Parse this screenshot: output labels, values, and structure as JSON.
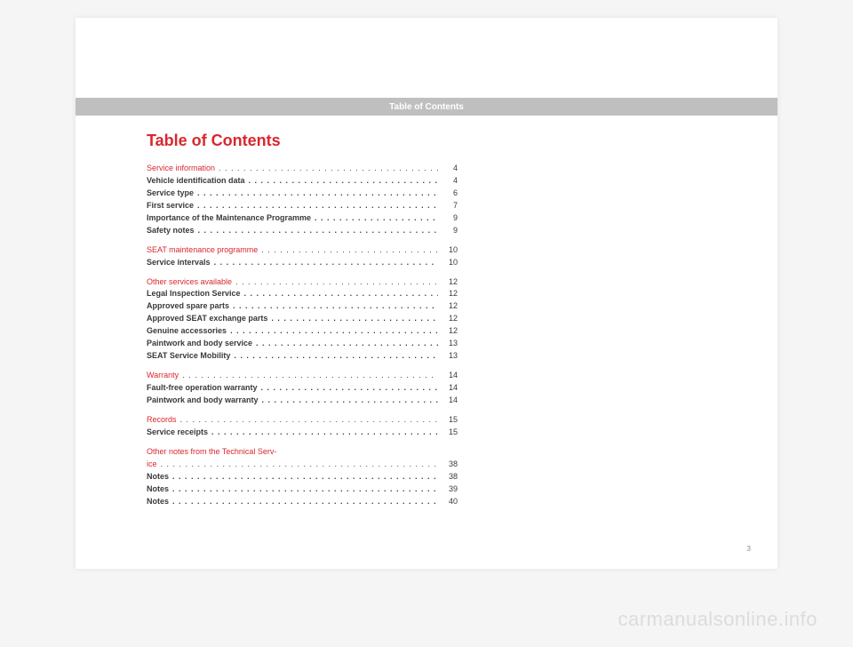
{
  "header": "Table of Contents",
  "title": "Table of Contents",
  "page_number": "3",
  "watermark": "carmanualsonline.info",
  "dots": ". . . . . . . . . . . . . . . . . . . . . . . . . . . . . . . . . . . . . . . . . . . . . . . . . . . . . . . . . . . .",
  "sections": [
    {
      "items": [
        {
          "label": "Service information",
          "page": "4",
          "style": "section"
        },
        {
          "label": "Vehicle identification data",
          "page": "4",
          "style": "bold"
        },
        {
          "label": "Service type",
          "page": "6",
          "style": "bold"
        },
        {
          "label": "First service",
          "page": "7",
          "style": "bold"
        },
        {
          "label": "Importance of the Maintenance Programme",
          "page": "9",
          "style": "bold"
        },
        {
          "label": "Safety notes",
          "page": "9",
          "style": "bold"
        }
      ]
    },
    {
      "items": [
        {
          "label": "SEAT maintenance programme",
          "page": "10",
          "style": "section"
        },
        {
          "label": "Service intervals",
          "page": "10",
          "style": "bold"
        }
      ]
    },
    {
      "items": [
        {
          "label": "Other services available",
          "page": "12",
          "style": "section"
        },
        {
          "label": "Legal Inspection Service",
          "page": "12",
          "style": "bold"
        },
        {
          "label": "Approved spare parts",
          "page": "12",
          "style": "bold"
        },
        {
          "label": "Approved SEAT exchange parts",
          "page": "12",
          "style": "bold"
        },
        {
          "label": "Genuine accessories",
          "page": "12",
          "style": "bold"
        },
        {
          "label": "Paintwork and body service",
          "page": "13",
          "style": "bold"
        },
        {
          "label": "SEAT Service Mobility",
          "page": "13",
          "style": "bold"
        }
      ]
    },
    {
      "items": [
        {
          "label": "Warranty",
          "page": "14",
          "style": "section"
        },
        {
          "label": "Fault-free operation warranty",
          "page": "14",
          "style": "bold"
        },
        {
          "label": "Paintwork and body warranty",
          "page": "14",
          "style": "bold"
        }
      ]
    },
    {
      "items": [
        {
          "label": "Records",
          "page": "15",
          "style": "section"
        },
        {
          "label": "Service receipts",
          "page": "15",
          "style": "bold"
        }
      ]
    },
    {
      "items": [
        {
          "label": "Other notes from the Technical Serv-",
          "page": "",
          "style": "section-nowrap"
        },
        {
          "label": "ice",
          "page": "38",
          "style": "section"
        },
        {
          "label": "Notes",
          "page": "38",
          "style": "bold"
        },
        {
          "label": "Notes",
          "page": "39",
          "style": "bold"
        },
        {
          "label": "Notes",
          "page": "40",
          "style": "bold"
        }
      ]
    }
  ]
}
